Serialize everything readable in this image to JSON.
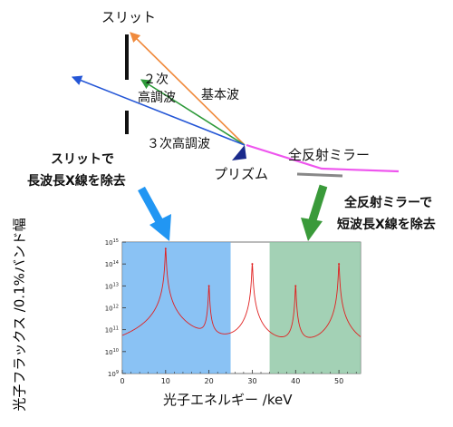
{
  "labels": {
    "slit": "スリット",
    "second_harmonic_1": "２次",
    "second_harmonic_2": "高調波",
    "fundamental": "基本波",
    "third_harmonic": "３次高調波",
    "prism": "プリズム",
    "mirror": "全反射ミラー",
    "slit_note_1": "スリットで",
    "slit_note_2": "長波長X線を除去",
    "mirror_note_1": "全反射ミラーで",
    "mirror_note_2": "短波長X線を除去"
  },
  "colors": {
    "fundamental": "#f08a3c",
    "second": "#2e9a3a",
    "third": "#2456d6",
    "mirror_beam": "#ee55ee",
    "prism": "#1a2a8c",
    "arrow_blue": "#2196f3",
    "arrow_green": "#3a9a3a",
    "region_blue": "#63aef0",
    "region_green": "#8cc5a3",
    "spectrum": "#e02020"
  },
  "chart_data": {
    "type": "line",
    "xlabel": "光子エネルギー /keV",
    "ylabel": "光子フラックス /0.1%バンド幅",
    "xlim": [
      0,
      55
    ],
    "ylim": [
      1000000000.0,
      1000000000000000.0
    ],
    "yscale": "log",
    "x_ticks": [
      "0",
      "10",
      "20",
      "30",
      "40",
      "50"
    ],
    "y_ticks": [
      "10^9",
      "10^10",
      "10^11",
      "10^12",
      "10^13",
      "10^14",
      "10^15"
    ],
    "peaks": [
      {
        "energy_keV": 10,
        "flux": 500000000000000.0
      },
      {
        "energy_keV": 20,
        "flux": 10000000000000.0
      },
      {
        "energy_keV": 30,
        "flux": 100000000000000.0
      },
      {
        "energy_keV": 40,
        "flux": 10000000000000.0
      },
      {
        "energy_keV": 50,
        "flux": 100000000000000.0
      }
    ],
    "baseline_flux": 1500000000.0,
    "shaded_regions": [
      {
        "from_keV": 0,
        "to_keV": 25,
        "color": "blue"
      },
      {
        "from_keV": 34,
        "to_keV": 55,
        "color": "green"
      }
    ]
  }
}
